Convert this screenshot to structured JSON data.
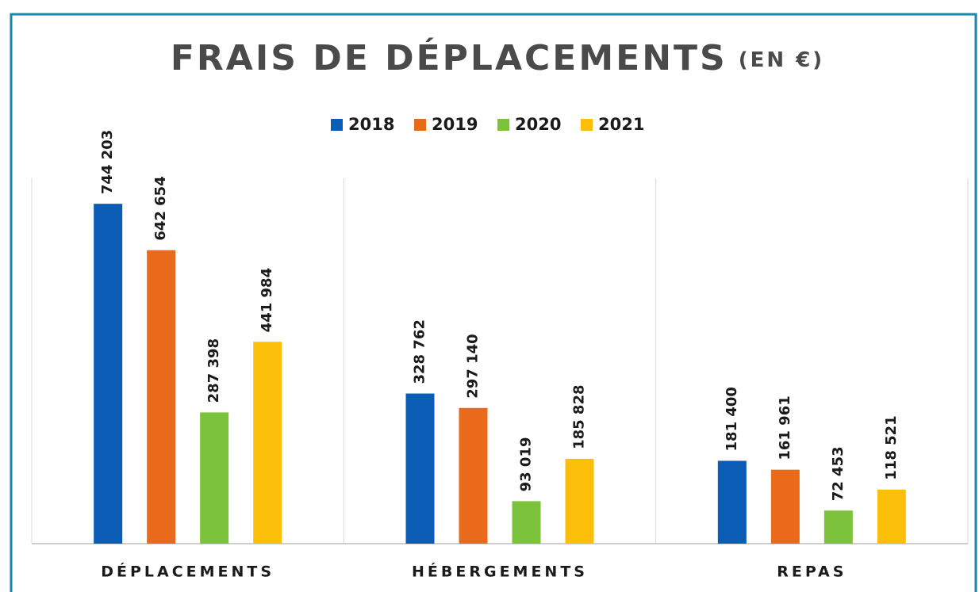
{
  "chart_data": {
    "type": "bar",
    "title": "FRAIS DE DÉPLACEMENTS",
    "subtitle": "(EN €)",
    "categories": [
      "DÉPLACEMENTS",
      "HÉBERGEMENTS",
      "REPAS"
    ],
    "series": [
      {
        "name": "2018",
        "color": "#0b5cb5",
        "values": [
          744203,
          328762,
          181400
        ],
        "value_labels": [
          "744 203",
          "328 762",
          "181 400"
        ]
      },
      {
        "name": "2019",
        "color": "#e86a1a",
        "values": [
          642654,
          297140,
          161961
        ],
        "value_labels": [
          "642 654",
          "297 140",
          "161 961"
        ]
      },
      {
        "name": "2020",
        "color": "#7dc23b",
        "values": [
          287398,
          93019,
          72453
        ],
        "value_labels": [
          "287 398",
          "93 019",
          "72 453"
        ]
      },
      {
        "name": "2021",
        "color": "#fbbf0a",
        "values": [
          441984,
          185828,
          118521
        ],
        "value_labels": [
          "441 984",
          "185 828",
          "118 521"
        ]
      }
    ],
    "ylim": [
      0,
      800000
    ],
    "legend": "top"
  }
}
